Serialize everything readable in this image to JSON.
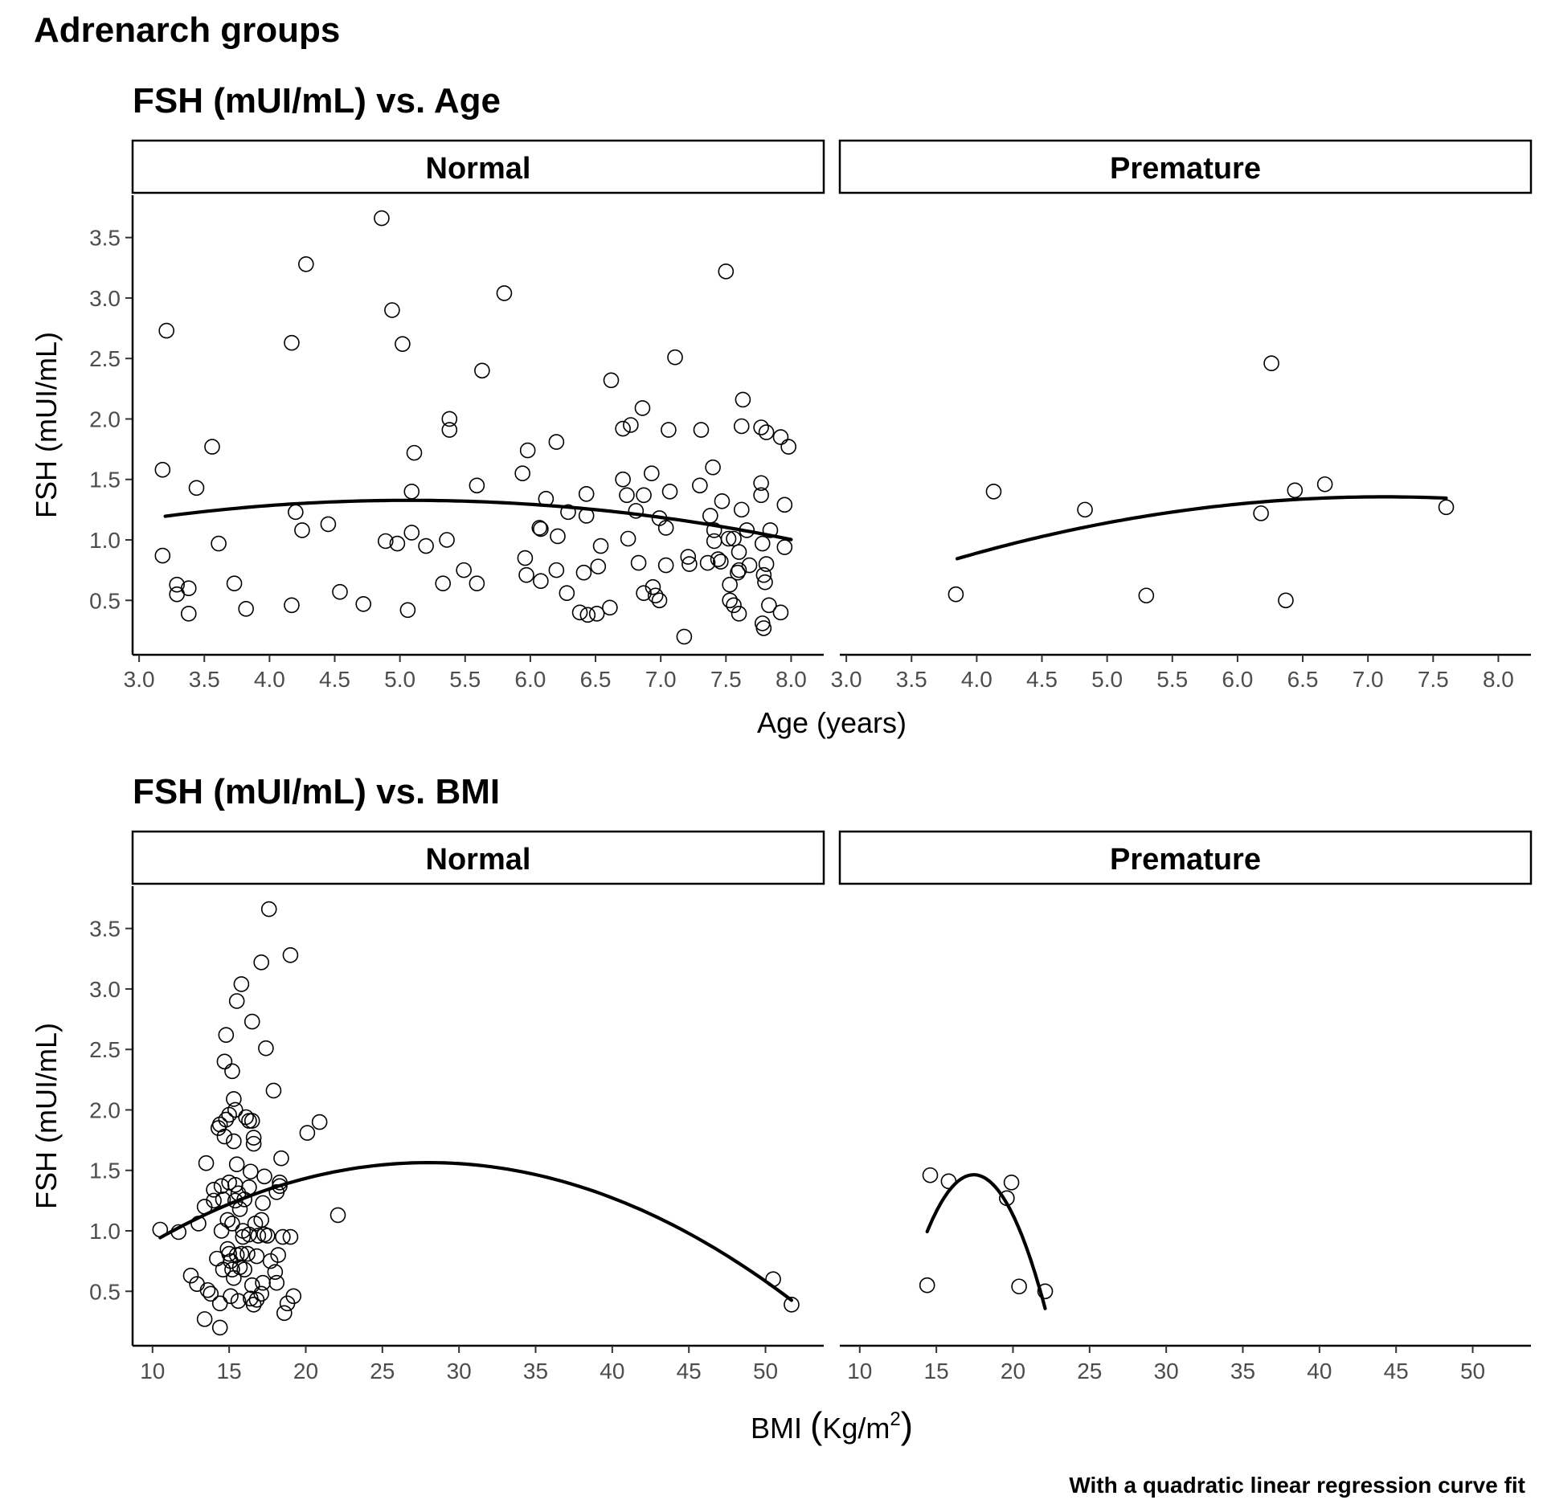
{
  "page": {
    "title": "Adrenarch groups",
    "caption": "With a quadratic linear regression curve fit"
  },
  "chart_data": [
    {
      "type": "scatter",
      "title": "FSH (mUI/mL) vs. Age",
      "xlabel": "Age (years)",
      "ylabel": "FSH (mUI/mL)",
      "xlim": [
        2.95,
        8.25
      ],
      "ylim": [
        0.05,
        3.85
      ],
      "xticks": [
        "3.0",
        "3.5",
        "4.0",
        "4.5",
        "5.0",
        "5.5",
        "6.0",
        "6.5",
        "7.0",
        "7.5",
        "8.0"
      ],
      "yticks": [
        "0.5",
        "1.0",
        "1.5",
        "2.0",
        "2.5",
        "3.0",
        "3.5"
      ],
      "fit": "quadratic",
      "panels": [
        {
          "name": "Normal",
          "fit_range": [
            3.2,
            8.0
          ],
          "points": [
            [
              3.18,
              1.58
            ],
            [
              3.21,
              2.73
            ],
            [
              3.18,
              0.87
            ],
            [
              3.29,
              0.63
            ],
            [
              3.29,
              0.55
            ],
            [
              3.38,
              0.6
            ],
            [
              3.38,
              0.39
            ],
            [
              3.44,
              1.43
            ],
            [
              3.56,
              1.77
            ],
            [
              3.61,
              0.97
            ],
            [
              3.73,
              0.64
            ],
            [
              3.82,
              0.43
            ],
            [
              4.17,
              2.63
            ],
            [
              4.17,
              0.46
            ],
            [
              4.2,
              1.23
            ],
            [
              4.25,
              1.08
            ],
            [
              4.28,
              3.28
            ],
            [
              4.45,
              1.13
            ],
            [
              4.54,
              0.57
            ],
            [
              4.72,
              0.47
            ],
            [
              4.86,
              3.66
            ],
            [
              4.89,
              0.99
            ],
            [
              4.94,
              2.9
            ],
            [
              4.98,
              0.97
            ],
            [
              5.02,
              2.62
            ],
            [
              5.06,
              0.42
            ],
            [
              5.09,
              1.4
            ],
            [
              5.09,
              1.06
            ],
            [
              5.11,
              1.72
            ],
            [
              5.2,
              0.95
            ],
            [
              5.33,
              0.64
            ],
            [
              5.36,
              1.0
            ],
            [
              5.38,
              2.0
            ],
            [
              5.38,
              1.91
            ],
            [
              5.49,
              0.75
            ],
            [
              5.59,
              1.45
            ],
            [
              5.59,
              0.64
            ],
            [
              5.63,
              2.4
            ],
            [
              5.8,
              3.04
            ],
            [
              5.94,
              1.55
            ],
            [
              5.96,
              0.85
            ],
            [
              5.97,
              0.71
            ],
            [
              5.98,
              1.74
            ],
            [
              6.07,
              1.1
            ],
            [
              6.08,
              1.09
            ],
            [
              6.08,
              0.66
            ],
            [
              6.12,
              1.34
            ],
            [
              6.2,
              1.81
            ],
            [
              6.2,
              0.75
            ],
            [
              6.21,
              1.03
            ],
            [
              6.28,
              0.56
            ],
            [
              6.29,
              1.23
            ],
            [
              6.38,
              0.4
            ],
            [
              6.41,
              0.73
            ],
            [
              6.43,
              1.38
            ],
            [
              6.43,
              1.2
            ],
            [
              6.44,
              0.38
            ],
            [
              6.51,
              0.39
            ],
            [
              6.52,
              0.78
            ],
            [
              6.54,
              0.95
            ],
            [
              6.61,
              0.44
            ],
            [
              6.62,
              2.32
            ],
            [
              6.71,
              1.5
            ],
            [
              6.71,
              1.92
            ],
            [
              6.74,
              1.37
            ],
            [
              6.75,
              1.01
            ],
            [
              6.77,
              1.95
            ],
            [
              6.81,
              1.24
            ],
            [
              6.83,
              0.81
            ],
            [
              6.86,
              2.09
            ],
            [
              6.87,
              1.37
            ],
            [
              6.87,
              0.56
            ],
            [
              6.93,
              1.55
            ],
            [
              6.94,
              0.61
            ],
            [
              6.96,
              0.54
            ],
            [
              6.99,
              1.18
            ],
            [
              6.99,
              0.5
            ],
            [
              7.04,
              1.1
            ],
            [
              7.04,
              0.79
            ],
            [
              7.06,
              1.91
            ],
            [
              7.07,
              1.4
            ],
            [
              7.11,
              2.51
            ],
            [
              7.18,
              0.2
            ],
            [
              7.21,
              0.86
            ],
            [
              7.22,
              0.8
            ],
            [
              7.3,
              1.45
            ],
            [
              7.31,
              1.91
            ],
            [
              7.36,
              0.81
            ],
            [
              7.38,
              1.2
            ],
            [
              7.4,
              1.6
            ],
            [
              7.41,
              1.08
            ],
            [
              7.41,
              0.99
            ],
            [
              7.44,
              0.84
            ],
            [
              7.46,
              0.82
            ],
            [
              7.47,
              1.32
            ],
            [
              7.5,
              3.22
            ],
            [
              7.52,
              1.01
            ],
            [
              7.53,
              0.63
            ],
            [
              7.53,
              0.5
            ],
            [
              7.56,
              0.46
            ],
            [
              7.56,
              1.01
            ],
            [
              7.59,
              0.73
            ],
            [
              7.6,
              0.75
            ],
            [
              7.6,
              0.39
            ],
            [
              7.6,
              0.9
            ],
            [
              7.62,
              1.25
            ],
            [
              7.62,
              1.94
            ],
            [
              7.63,
              2.16
            ],
            [
              7.66,
              1.08
            ],
            [
              7.68,
              0.79
            ],
            [
              7.77,
              1.47
            ],
            [
              7.77,
              1.37
            ],
            [
              7.77,
              1.93
            ],
            [
              7.78,
              0.97
            ],
            [
              7.78,
              0.31
            ],
            [
              7.79,
              0.27
            ],
            [
              7.79,
              0.71
            ],
            [
              7.8,
              0.65
            ],
            [
              7.81,
              0.8
            ],
            [
              7.81,
              1.89
            ],
            [
              7.83,
              0.46
            ],
            [
              7.84,
              1.08
            ],
            [
              7.92,
              1.85
            ],
            [
              7.92,
              0.4
            ],
            [
              7.95,
              1.29
            ],
            [
              7.95,
              0.94
            ],
            [
              7.98,
              1.77
            ]
          ]
        },
        {
          "name": "Premature",
          "fit_range": [
            3.85,
            7.6
          ],
          "points": [
            [
              3.84,
              0.55
            ],
            [
              4.13,
              1.4
            ],
            [
              4.83,
              1.25
            ],
            [
              5.3,
              0.54
            ],
            [
              6.18,
              1.22
            ],
            [
              6.26,
              2.46
            ],
            [
              6.37,
              0.5
            ],
            [
              6.44,
              1.41
            ],
            [
              6.67,
              1.46
            ],
            [
              7.6,
              1.27
            ]
          ]
        }
      ]
    },
    {
      "type": "scatter",
      "title": "FSH (mUI/mL) vs. BMI",
      "xlabel": "BMI (Kg/m²)",
      "xlabel_parts": {
        "open": "(",
        "base": "Kg/m",
        "sup": "2",
        "close": ")",
        "prefix": "BMI"
      },
      "ylabel": "FSH (mUI/mL)",
      "xlim": [
        8.7,
        53.8
      ],
      "ylim": [
        0.05,
        3.85
      ],
      "xticks": [
        "10",
        "15",
        "20",
        "25",
        "30",
        "35",
        "40",
        "45",
        "50"
      ],
      "yticks": [
        "0.5",
        "1.0",
        "1.5",
        "2.0",
        "2.5",
        "3.0",
        "3.5"
      ],
      "fit": "quadratic",
      "panels": [
        {
          "name": "Normal",
          "fit_range": [
            10.5,
            51.7
          ],
          "points": [
            [
              10.5,
              1.01
            ],
            [
              11.7,
              0.99
            ],
            [
              12.5,
              0.63
            ],
            [
              12.9,
              0.56
            ],
            [
              13.0,
              1.06
            ],
            [
              13.4,
              0.27
            ],
            [
              13.4,
              1.2
            ],
            [
              13.5,
              1.56
            ],
            [
              13.6,
              0.51
            ],
            [
              13.8,
              0.48
            ],
            [
              14.0,
              1.25
            ],
            [
              14.0,
              1.34
            ],
            [
              14.2,
              0.77
            ],
            [
              14.3,
              1.85
            ],
            [
              14.4,
              0.2
            ],
            [
              14.4,
              1.88
            ],
            [
              14.4,
              0.4
            ],
            [
              14.5,
              1.37
            ],
            [
              14.5,
              1.0
            ],
            [
              14.6,
              0.68
            ],
            [
              14.6,
              1.26
            ],
            [
              14.7,
              2.4
            ],
            [
              14.7,
              1.78
            ],
            [
              14.8,
              1.92
            ],
            [
              14.8,
              2.62
            ],
            [
              14.9,
              1.09
            ],
            [
              14.9,
              0.85
            ],
            [
              15.0,
              1.96
            ],
            [
              15.0,
              1.4
            ],
            [
              15.0,
              0.81
            ],
            [
              15.1,
              0.75
            ],
            [
              15.1,
              0.46
            ],
            [
              15.2,
              1.06
            ],
            [
              15.2,
              0.68
            ],
            [
              15.2,
              2.32
            ],
            [
              15.3,
              0.61
            ],
            [
              15.3,
              2.09
            ],
            [
              15.3,
              1.74
            ],
            [
              15.4,
              2.0
            ],
            [
              15.4,
              1.38
            ],
            [
              15.4,
              1.25
            ],
            [
              15.5,
              2.9
            ],
            [
              15.5,
              1.55
            ],
            [
              15.5,
              0.8
            ],
            [
              15.6,
              0.42
            ],
            [
              15.6,
              1.31
            ],
            [
              15.7,
              0.7
            ],
            [
              15.7,
              1.18
            ],
            [
              15.8,
              3.04
            ],
            [
              15.8,
              0.81
            ],
            [
              15.9,
              0.95
            ],
            [
              15.9,
              1.0
            ],
            [
              16.0,
              1.26
            ],
            [
              16.0,
              0.68
            ],
            [
              16.1,
              1.94
            ],
            [
              16.2,
              0.81
            ],
            [
              16.3,
              1.91
            ],
            [
              16.3,
              0.97
            ],
            [
              16.3,
              1.36
            ],
            [
              16.4,
              1.49
            ],
            [
              16.4,
              0.44
            ],
            [
              16.5,
              2.73
            ],
            [
              16.5,
              1.91
            ],
            [
              16.5,
              0.55
            ],
            [
              16.6,
              0.39
            ],
            [
              16.6,
              1.77
            ],
            [
              16.6,
              1.72
            ],
            [
              16.7,
              1.06
            ],
            [
              16.8,
              0.79
            ],
            [
              16.8,
              0.43
            ],
            [
              16.9,
              0.96
            ],
            [
              17.1,
              3.22
            ],
            [
              17.1,
              1.09
            ],
            [
              17.1,
              0.48
            ],
            [
              17.2,
              0.57
            ],
            [
              17.2,
              1.23
            ],
            [
              17.3,
              1.45
            ],
            [
              17.3,
              0.97
            ],
            [
              17.4,
              2.51
            ],
            [
              17.5,
              0.96
            ],
            [
              17.6,
              3.66
            ],
            [
              17.7,
              0.75
            ],
            [
              17.9,
              2.16
            ],
            [
              18.0,
              0.66
            ],
            [
              18.1,
              1.32
            ],
            [
              18.1,
              0.57
            ],
            [
              18.2,
              0.8
            ],
            [
              18.3,
              1.4
            ],
            [
              18.3,
              1.37
            ],
            [
              18.4,
              1.6
            ],
            [
              18.5,
              0.95
            ],
            [
              18.6,
              0.32
            ],
            [
              18.8,
              0.4
            ],
            [
              19.0,
              3.28
            ],
            [
              19.0,
              0.95
            ],
            [
              19.2,
              0.46
            ],
            [
              20.1,
              1.81
            ],
            [
              20.9,
              1.9
            ],
            [
              22.1,
              1.13
            ],
            [
              50.5,
              0.6
            ],
            [
              51.7,
              0.39
            ]
          ]
        },
        {
          "name": "Premature",
          "fit_range": [
            14.4,
            22.1
          ],
          "points": [
            [
              14.4,
              0.55
            ],
            [
              14.6,
              1.46
            ],
            [
              15.8,
              1.41
            ],
            [
              19.6,
              1.27
            ],
            [
              19.9,
              1.4
            ],
            [
              20.4,
              0.54
            ],
            [
              22.1,
              0.5
            ]
          ]
        }
      ]
    }
  ]
}
